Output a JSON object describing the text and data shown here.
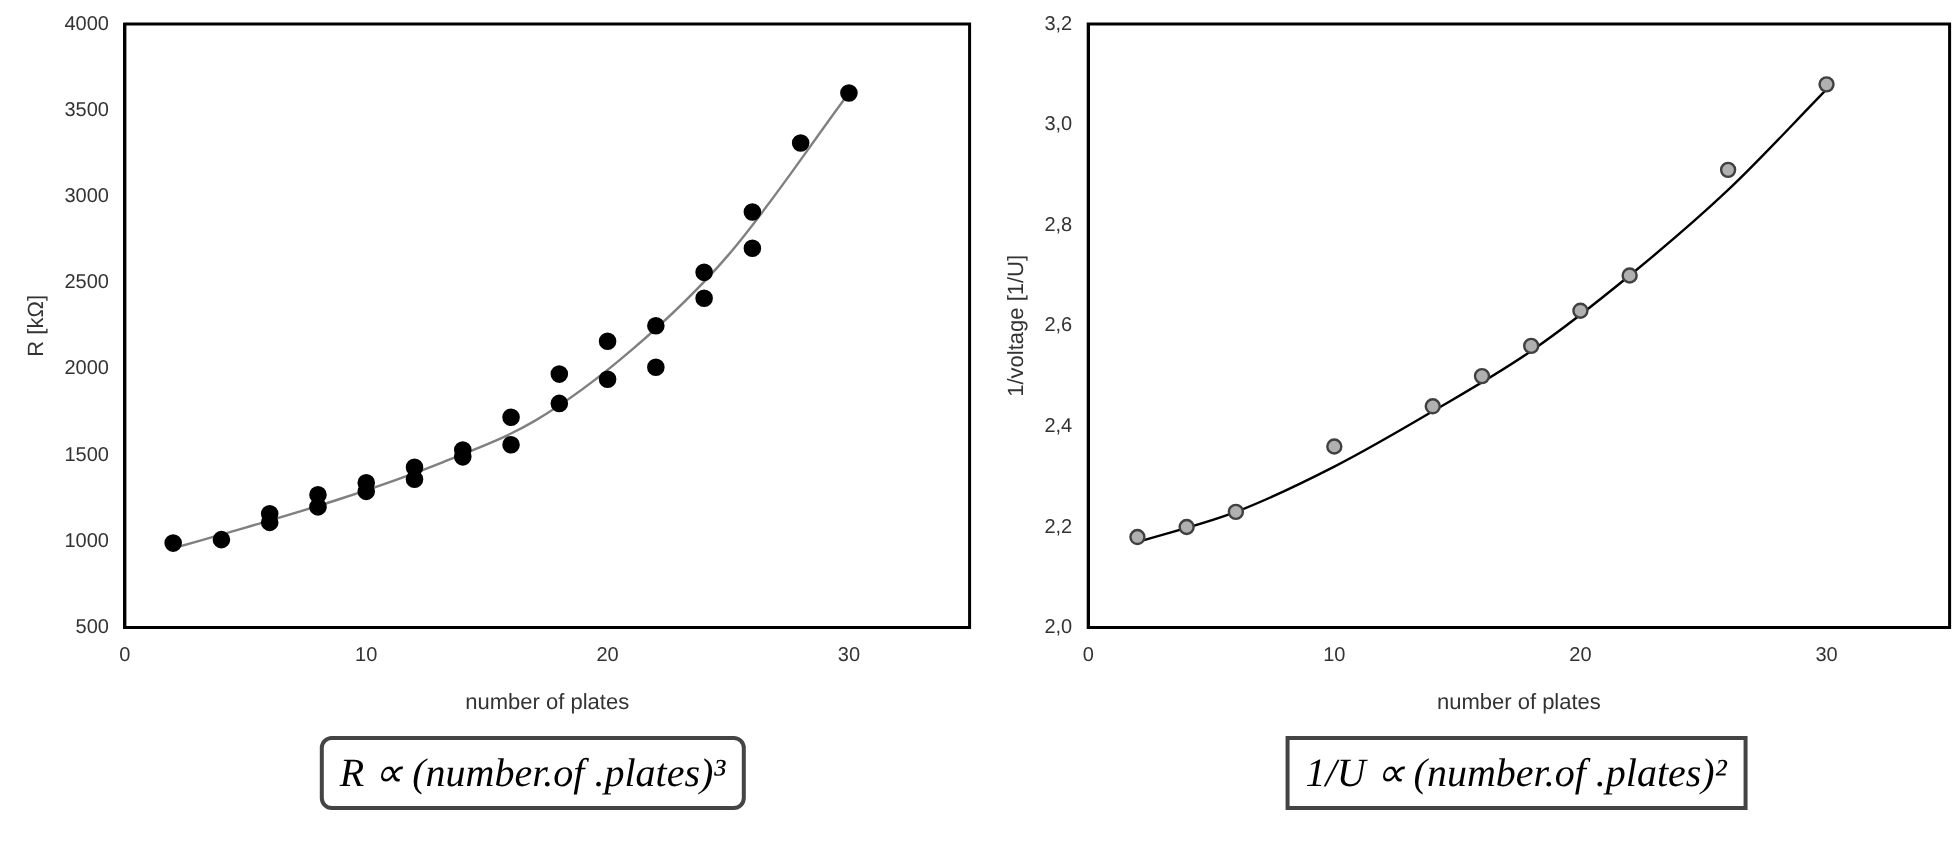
{
  "chart_data": [
    {
      "type": "scatter",
      "xlabel": "number of plates",
      "ylabel": "R [kΩ]",
      "xlim": [
        0,
        35
      ],
      "xticks": [
        0,
        10,
        20,
        30
      ],
      "ylim": [
        500,
        4000
      ],
      "yticks": [
        500,
        1000,
        1500,
        2000,
        2500,
        3000,
        3500,
        4000
      ],
      "grid": false,
      "legend": false,
      "marker": "circle",
      "annotations": [
        "R ∝ (number.of .plates)³"
      ],
      "series": [
        {
          "type": "scatter",
          "color": "#000000",
          "x": [
            2,
            4,
            6,
            6,
            8,
            8,
            10,
            10,
            12,
            12,
            14,
            14,
            16,
            16,
            18,
            18,
            20,
            20,
            22,
            22,
            24,
            24,
            26,
            26,
            28,
            30
          ],
          "values": [
            990,
            1010,
            1160,
            1110,
            1270,
            1200,
            1340,
            1290,
            1430,
            1360,
            1530,
            1490,
            1720,
            1560,
            1970,
            1800,
            2160,
            1940,
            2250,
            2010,
            2560,
            2410,
            2910,
            2700,
            3310,
            3600
          ]
        },
        {
          "type": "line",
          "color": "#808080",
          "marker": "none",
          "x": [
            2,
            5,
            9,
            13,
            17,
            21,
            25,
            30
          ],
          "values": [
            960,
            1080,
            1250,
            1450,
            1700,
            2110,
            2660,
            3600
          ]
        }
      ]
    },
    {
      "type": "scatter",
      "xlabel": "number of plates",
      "ylabel": "1/voltage [1/U]",
      "xlim": [
        0,
        35
      ],
      "xticks": [
        0,
        10,
        20,
        30
      ],
      "ylim": [
        2.0,
        3.2
      ],
      "yticks": [
        {
          "value": 2.0,
          "label": "2,0"
        },
        {
          "value": 2.2,
          "label": "2,2"
        },
        {
          "value": 2.4,
          "label": "2,4"
        },
        {
          "value": 2.6,
          "label": "2,6"
        },
        {
          "value": 2.8,
          "label": "2,8"
        },
        {
          "value": 3.0,
          "label": "3,0"
        },
        {
          "value": 3.2,
          "label": "3,2"
        }
      ],
      "grid": false,
      "legend": false,
      "marker": "circle",
      "annotations": [
        "1/U ∝ (number.of .plates)²"
      ],
      "series": [
        {
          "type": "scatter",
          "color": "#404040",
          "x": [
            2,
            4,
            6,
            10,
            14,
            16,
            18,
            20,
            22,
            26,
            30
          ],
          "values": [
            2.18,
            2.2,
            2.23,
            2.36,
            2.44,
            2.5,
            2.56,
            2.63,
            2.7,
            2.91,
            3.08
          ]
        },
        {
          "type": "line",
          "color": "#000000",
          "marker": "none",
          "x": [
            2,
            6,
            10,
            14,
            18,
            22,
            26,
            30
          ],
          "values": [
            2.17,
            2.23,
            2.32,
            2.43,
            2.55,
            2.7,
            2.87,
            3.07
          ]
        }
      ]
    }
  ]
}
